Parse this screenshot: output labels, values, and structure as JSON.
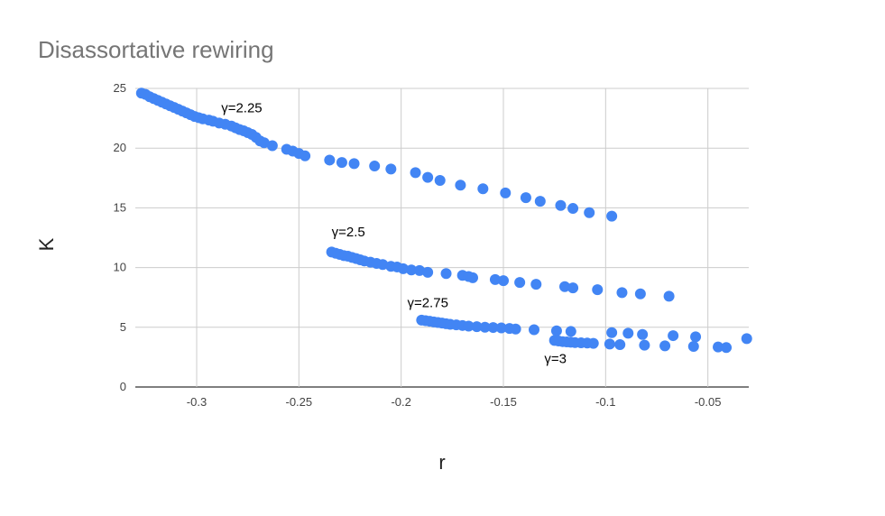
{
  "chart_data": {
    "type": "scatter",
    "title": "Disassortative rewiring",
    "xlabel": "r",
    "ylabel": "K",
    "xlim": [
      -0.33,
      -0.03
    ],
    "ylim": [
      0,
      25
    ],
    "xticks": [
      -0.3,
      -0.25,
      -0.2,
      -0.15,
      -0.1,
      -0.05
    ],
    "xtick_labels": [
      "-0.3",
      "-0.25",
      "-0.2",
      "-0.15",
      "-0.1",
      "-0.05"
    ],
    "yticks": [
      0,
      5,
      10,
      15,
      20,
      25
    ],
    "ytick_labels": [
      "0",
      "5",
      "10",
      "15",
      "20",
      "25"
    ],
    "grid": true,
    "legend": "none",
    "color": "#4285f4",
    "annotations": [
      {
        "text": "γ=2.25",
        "x": -0.288,
        "y": 23.0
      },
      {
        "text": "γ=2.5",
        "x": -0.234,
        "y": 12.6
      },
      {
        "text": "γ=2.75",
        "x": -0.197,
        "y": 6.7
      },
      {
        "text": "γ=3",
        "x": -0.13,
        "y": 2.0
      }
    ],
    "series": [
      {
        "points": [
          [
            -0.327,
            24.6
          ],
          [
            -0.325,
            24.5
          ],
          [
            -0.323,
            24.3
          ],
          [
            -0.321,
            24.15
          ],
          [
            -0.319,
            24.0
          ],
          [
            -0.317,
            23.85
          ],
          [
            -0.315,
            23.7
          ],
          [
            -0.313,
            23.55
          ],
          [
            -0.311,
            23.4
          ],
          [
            -0.309,
            23.25
          ],
          [
            -0.307,
            23.1
          ],
          [
            -0.305,
            22.95
          ],
          [
            -0.303,
            22.8
          ],
          [
            -0.301,
            22.65
          ],
          [
            -0.299,
            22.55
          ],
          [
            -0.297,
            22.45
          ],
          [
            -0.294,
            22.35
          ],
          [
            -0.292,
            22.25
          ],
          [
            -0.289,
            22.1
          ],
          [
            -0.286,
            22.0
          ],
          [
            -0.283,
            21.85
          ],
          [
            -0.281,
            21.7
          ],
          [
            -0.279,
            21.55
          ],
          [
            -0.277,
            21.45
          ],
          [
            -0.275,
            21.3
          ],
          [
            -0.273,
            21.15
          ],
          [
            -0.271,
            20.9
          ],
          [
            -0.269,
            20.6
          ],
          [
            -0.267,
            20.45
          ],
          [
            -0.263,
            20.2
          ],
          [
            -0.256,
            19.9
          ],
          [
            -0.253,
            19.75
          ],
          [
            -0.25,
            19.55
          ],
          [
            -0.247,
            19.35
          ],
          [
            -0.235,
            19.0
          ],
          [
            -0.229,
            18.8
          ],
          [
            -0.223,
            18.7
          ],
          [
            -0.213,
            18.5
          ],
          [
            -0.205,
            18.25
          ],
          [
            -0.193,
            17.95
          ],
          [
            -0.187,
            17.55
          ],
          [
            -0.181,
            17.3
          ],
          [
            -0.171,
            16.9
          ],
          [
            -0.16,
            16.6
          ],
          [
            -0.149,
            16.25
          ],
          [
            -0.139,
            15.85
          ],
          [
            -0.132,
            15.55
          ],
          [
            -0.122,
            15.2
          ],
          [
            -0.116,
            14.95
          ],
          [
            -0.108,
            14.6
          ],
          [
            -0.097,
            14.3
          ]
        ]
      },
      {
        "points": [
          [
            -0.234,
            11.3
          ],
          [
            -0.232,
            11.2
          ],
          [
            -0.23,
            11.1
          ],
          [
            -0.228,
            11.0
          ],
          [
            -0.226,
            10.95
          ],
          [
            -0.224,
            10.85
          ],
          [
            -0.222,
            10.75
          ],
          [
            -0.22,
            10.65
          ],
          [
            -0.218,
            10.55
          ],
          [
            -0.215,
            10.45
          ],
          [
            -0.212,
            10.35
          ],
          [
            -0.209,
            10.25
          ],
          [
            -0.205,
            10.1
          ],
          [
            -0.202,
            10.05
          ],
          [
            -0.199,
            9.9
          ],
          [
            -0.195,
            9.8
          ],
          [
            -0.191,
            9.75
          ],
          [
            -0.187,
            9.6
          ],
          [
            -0.178,
            9.5
          ],
          [
            -0.17,
            9.35
          ],
          [
            -0.167,
            9.25
          ],
          [
            -0.165,
            9.15
          ],
          [
            -0.154,
            9.0
          ],
          [
            -0.15,
            8.9
          ],
          [
            -0.142,
            8.75
          ],
          [
            -0.134,
            8.6
          ],
          [
            -0.12,
            8.4
          ],
          [
            -0.116,
            8.3
          ],
          [
            -0.104,
            8.15
          ],
          [
            -0.092,
            7.9
          ],
          [
            -0.083,
            7.8
          ],
          [
            -0.069,
            7.6
          ]
        ]
      },
      {
        "points": [
          [
            -0.19,
            5.6
          ],
          [
            -0.188,
            5.55
          ],
          [
            -0.186,
            5.5
          ],
          [
            -0.184,
            5.45
          ],
          [
            -0.182,
            5.4
          ],
          [
            -0.18,
            5.35
          ],
          [
            -0.178,
            5.3
          ],
          [
            -0.176,
            5.25
          ],
          [
            -0.173,
            5.2
          ],
          [
            -0.17,
            5.15
          ],
          [
            -0.167,
            5.1
          ],
          [
            -0.163,
            5.05
          ],
          [
            -0.159,
            5.0
          ],
          [
            -0.155,
            4.98
          ],
          [
            -0.151,
            4.95
          ],
          [
            -0.147,
            4.9
          ],
          [
            -0.144,
            4.85
          ],
          [
            -0.135,
            4.8
          ],
          [
            -0.124,
            4.7
          ],
          [
            -0.117,
            4.65
          ],
          [
            -0.097,
            4.55
          ],
          [
            -0.089,
            4.5
          ],
          [
            -0.082,
            4.4
          ],
          [
            -0.067,
            4.3
          ],
          [
            -0.056,
            4.2
          ],
          [
            -0.031,
            4.05
          ]
        ]
      },
      {
        "points": [
          [
            -0.125,
            3.9
          ],
          [
            -0.123,
            3.85
          ],
          [
            -0.121,
            3.8
          ],
          [
            -0.119,
            3.78
          ],
          [
            -0.117,
            3.75
          ],
          [
            -0.115,
            3.72
          ],
          [
            -0.112,
            3.7
          ],
          [
            -0.109,
            3.68
          ],
          [
            -0.106,
            3.65
          ],
          [
            -0.098,
            3.6
          ],
          [
            -0.093,
            3.55
          ],
          [
            -0.081,
            3.5
          ],
          [
            -0.071,
            3.45
          ],
          [
            -0.057,
            3.4
          ],
          [
            -0.045,
            3.35
          ],
          [
            -0.041,
            3.3
          ]
        ]
      }
    ]
  }
}
